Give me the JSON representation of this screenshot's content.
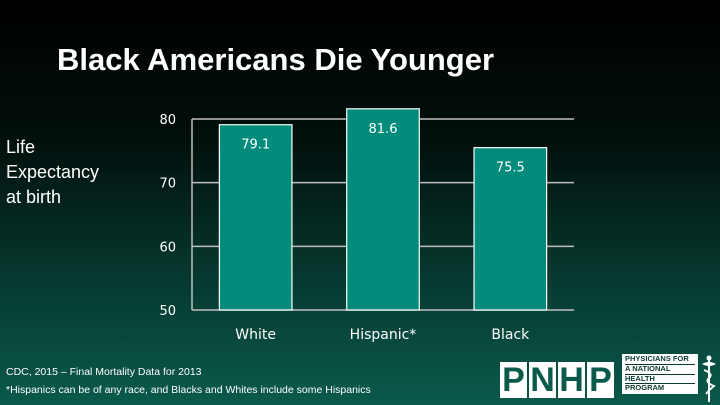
{
  "title": "Black Americans Die Younger",
  "ylabel_lines": [
    "Life",
    "Expectancy",
    "at birth"
  ],
  "source": "CDC, 2015 – Final Mortality Data for 2013",
  "footnote": "*Hispanics can be of any race, and Blacks and Whites include some Hispanics",
  "logo": {
    "letters": [
      "P",
      "N",
      "H",
      "P"
    ],
    "text_lines": [
      "PHYSICIANS FOR",
      "A NATIONAL",
      "HEALTH",
      "PROGRAM"
    ]
  },
  "colors": {
    "bar": "#008b7a",
    "bar_border": "#ffffff",
    "grid": "#bfbfbf"
  },
  "chart_data": {
    "type": "bar",
    "title": "Black Americans Die Younger",
    "ylabel": "Life Expectancy at birth",
    "xlabel": "",
    "categories": [
      "White",
      "Hispanic*",
      "Black"
    ],
    "values": [
      79.1,
      81.6,
      75.5
    ],
    "value_labels": [
      "79.1",
      "81.6",
      "75.5"
    ],
    "ylim": [
      50,
      80
    ],
    "yticks": [
      50,
      60,
      70,
      80
    ],
    "grid": true,
    "legend": "none"
  }
}
